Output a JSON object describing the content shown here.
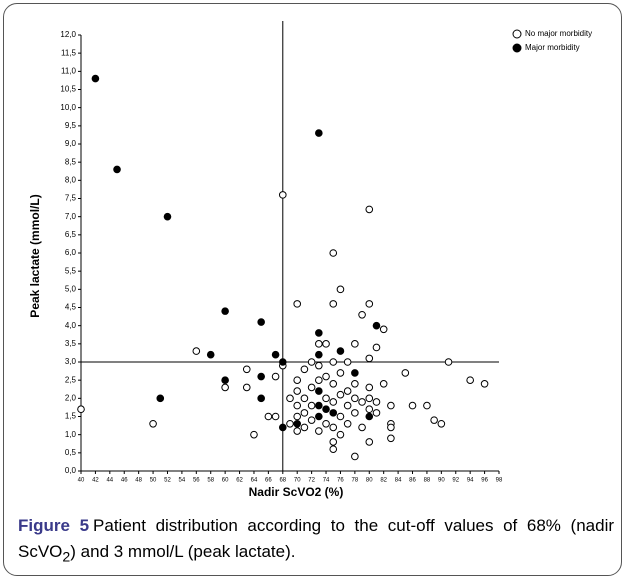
{
  "chart_data": {
    "type": "scatter",
    "x_label": "Nadir ScVO2 (%)",
    "y_label": "Peak lactate (mmol/L)",
    "xlim": [
      40,
      98
    ],
    "ylim": [
      0,
      12
    ],
    "xticks": [
      40,
      42,
      44,
      46,
      48,
      50,
      52,
      54,
      56,
      58,
      60,
      62,
      64,
      66,
      68,
      70,
      72,
      74,
      76,
      78,
      80,
      82,
      84,
      86,
      88,
      90,
      92,
      94,
      96,
      98
    ],
    "yticks": [
      {
        "value": 0,
        "label": "0,0"
      },
      {
        "value": 0.5,
        "label": "0,5"
      },
      {
        "value": 1,
        "label": "1,0"
      },
      {
        "value": 1.5,
        "label": "1,5"
      },
      {
        "value": 2,
        "label": "2,0"
      },
      {
        "value": 2.5,
        "label": "2,5"
      },
      {
        "value": 3,
        "label": "3,0"
      },
      {
        "value": 3.5,
        "label": "3,5"
      },
      {
        "value": 4,
        "label": "4,0"
      },
      {
        "value": 4.5,
        "label": "4,5"
      },
      {
        "value": 5,
        "label": "5,0"
      },
      {
        "value": 5.5,
        "label": "5,5"
      },
      {
        "value": 6,
        "label": "6,0"
      },
      {
        "value": 6.5,
        "label": "6,5"
      },
      {
        "value": 7,
        "label": "7,0"
      },
      {
        "value": 7.5,
        "label": "7,5"
      },
      {
        "value": 8,
        "label": "8,0"
      },
      {
        "value": 8.5,
        "label": "8,5"
      },
      {
        "value": 9,
        "label": "9,0"
      },
      {
        "value": 9.5,
        "label": "9,5"
      },
      {
        "value": 10,
        "label": "10,0"
      },
      {
        "value": 10.5,
        "label": "10,5"
      },
      {
        "value": 11,
        "label": "11,0"
      },
      {
        "value": 11.5,
        "label": "11,5"
      },
      {
        "value": 12,
        "label": "12,0"
      }
    ],
    "reference_lines": {
      "x": 68,
      "y": 3
    },
    "series": [
      {
        "name": "No major morbidity",
        "color": "#000000",
        "marker": "open",
        "x": [
          40,
          50,
          56,
          60,
          63,
          63,
          64,
          66,
          67,
          67,
          68,
          80,
          75,
          76,
          70,
          75,
          80,
          73,
          74,
          78,
          79,
          81,
          82,
          80,
          85,
          82,
          83,
          83,
          83,
          83,
          86,
          88,
          89,
          90,
          91,
          94,
          96,
          78,
          75,
          75,
          80,
          76,
          69,
          70,
          70,
          70,
          70,
          71,
          71,
          71,
          71,
          72,
          72,
          72,
          72,
          73,
          73,
          73,
          74,
          74,
          74,
          75,
          75,
          75,
          75,
          76,
          76,
          76,
          77,
          77,
          77,
          77,
          78,
          78,
          78,
          79,
          79,
          80,
          80,
          80,
          81,
          81,
          68,
          69,
          70
        ],
        "values": [
          1.7,
          1.3,
          3.3,
          2.3,
          2.8,
          2.3,
          1.0,
          1.5,
          1.5,
          2.6,
          7.6,
          7.2,
          6.0,
          5.0,
          4.6,
          4.6,
          4.6,
          3.5,
          3.5,
          3.5,
          4.3,
          3.4,
          3.9,
          3.1,
          2.7,
          2.4,
          1.8,
          1.3,
          1.2,
          0.9,
          1.8,
          1.8,
          1.4,
          1.3,
          3.0,
          2.5,
          2.4,
          0.4,
          0.6,
          0.8,
          0.8,
          1.0,
          2.0,
          1.5,
          1.8,
          2.2,
          2.5,
          1.2,
          1.6,
          2.0,
          2.8,
          1.4,
          1.8,
          2.3,
          3.0,
          1.1,
          2.5,
          2.9,
          1.3,
          2.0,
          2.6,
          1.2,
          1.9,
          2.4,
          3.0,
          1.5,
          2.1,
          2.7,
          1.3,
          1.8,
          2.2,
          3.0,
          1.6,
          2.0,
          2.4,
          1.2,
          1.9,
          1.7,
          2.0,
          2.3,
          1.6,
          1.9,
          2.9,
          1.3,
          1.1
        ]
      },
      {
        "name": "Major morbidity",
        "color": "#000000",
        "marker": "filled",
        "x": [
          42,
          45,
          52,
          73,
          60,
          65,
          58,
          60,
          51,
          65,
          65,
          67,
          68,
          68,
          73,
          73,
          76,
          81,
          70,
          73,
          73,
          75,
          78,
          80,
          73,
          74
        ],
        "values": [
          10.8,
          8.3,
          7.0,
          9.3,
          4.4,
          4.1,
          3.2,
          2.5,
          2.0,
          2.6,
          2.0,
          3.2,
          3.0,
          1.2,
          3.8,
          3.2,
          3.3,
          4.0,
          1.3,
          1.5,
          1.8,
          1.6,
          2.7,
          1.5,
          2.2,
          1.7
        ]
      }
    ]
  },
  "caption": {
    "label": "Figure 5",
    "text_1": "Patient distribution according to the cut-off values of 68% (nadir ScVO",
    "sub": "2",
    "text_2": ") and 3 mmol/L (peak lactate)."
  }
}
